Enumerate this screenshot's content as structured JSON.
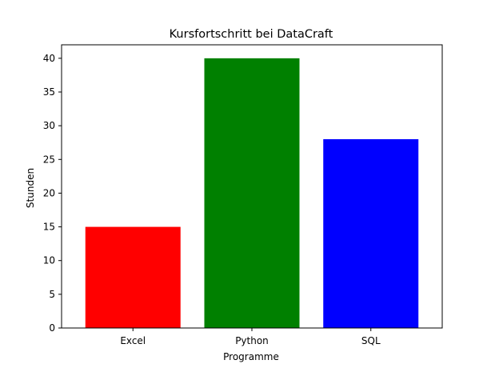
{
  "chart_data": {
    "type": "bar",
    "title": "Kursfortschritt bei DataCraft",
    "xlabel": "Programme",
    "ylabel": "Stunden",
    "categories": [
      "Excel",
      "Python",
      "SQL"
    ],
    "values": [
      15,
      40,
      28
    ],
    "colors": [
      "#ff0000",
      "#008000",
      "#0000ff"
    ],
    "ylim": [
      0,
      42
    ],
    "yticks": [
      0,
      5,
      10,
      15,
      20,
      25,
      30,
      35,
      40
    ],
    "grid": false,
    "legend": "none"
  }
}
